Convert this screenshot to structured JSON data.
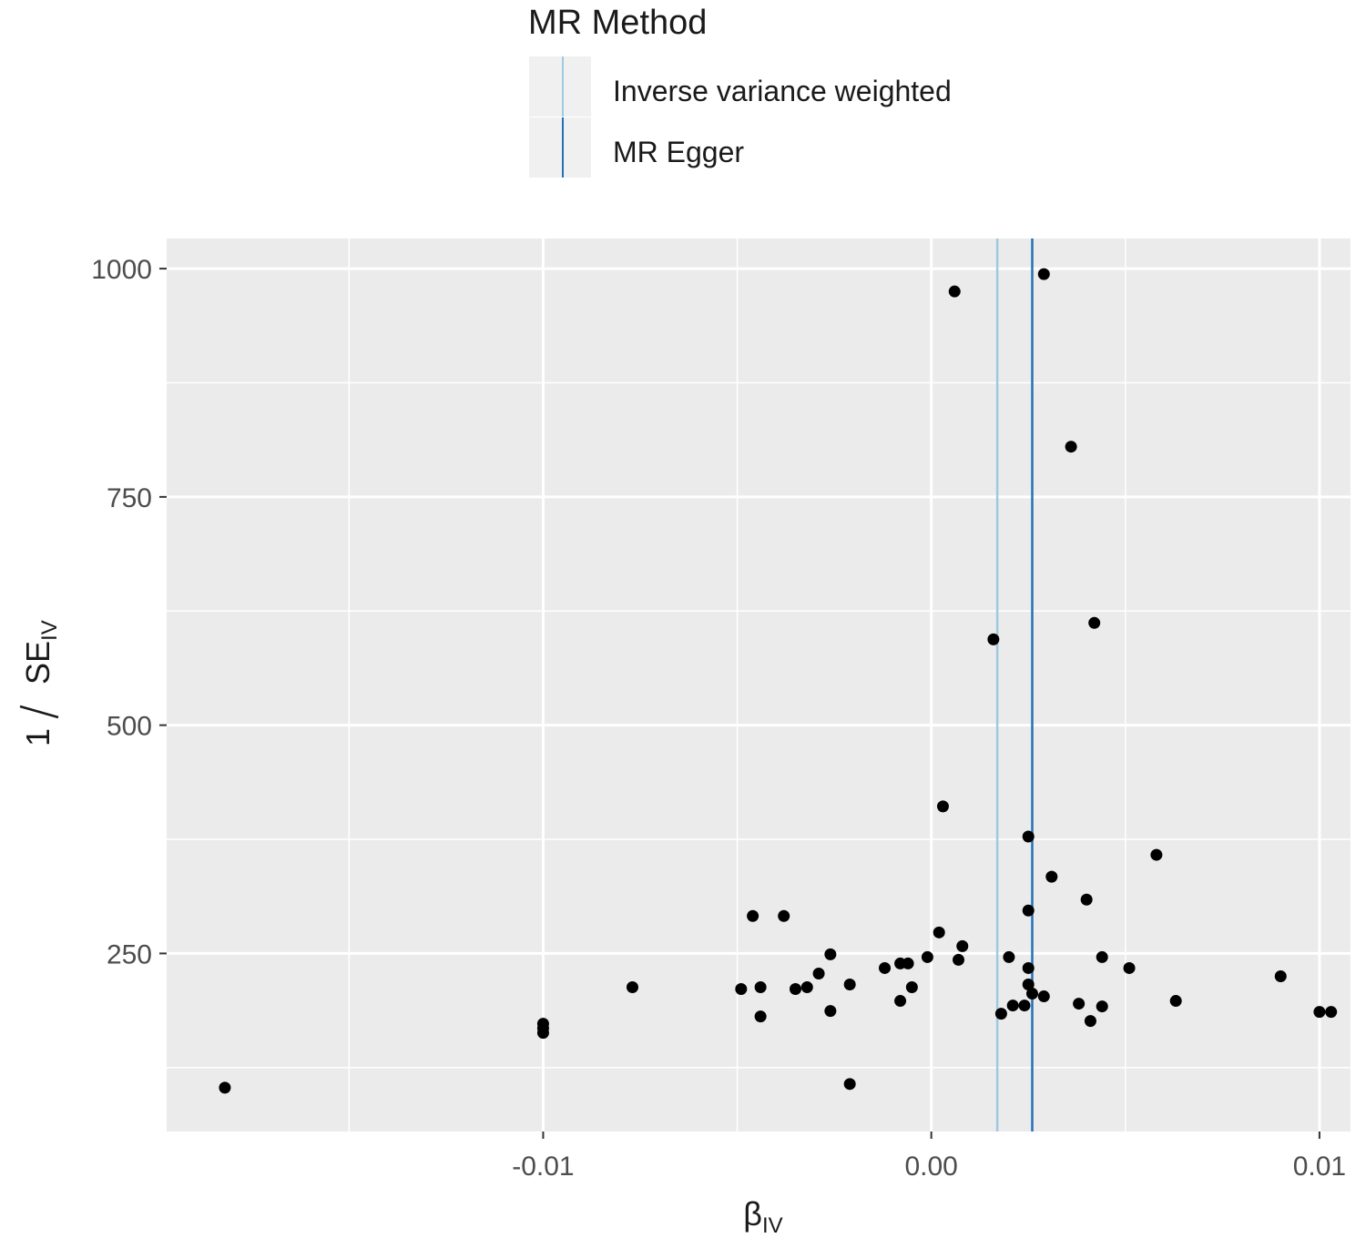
{
  "legend": {
    "title": "MR Method",
    "items": [
      {
        "label": "Inverse variance weighted",
        "color": "#9ecae1"
      },
      {
        "label": "MR Egger",
        "color": "#2171b5"
      }
    ]
  },
  "chart_data": {
    "type": "scatter",
    "xlabel": {
      "main": "β",
      "sub": "IV"
    },
    "ylabel": {
      "numerator": "1",
      "denominator": "SE",
      "sub": "IV"
    },
    "x_ticks": [
      {
        "value": -0.01,
        "label": "-0.01"
      },
      {
        "value": 0.0,
        "label": "0.00"
      },
      {
        "value": 0.01,
        "label": "0.01"
      }
    ],
    "y_ticks": [
      {
        "value": 250,
        "label": "250"
      },
      {
        "value": 500,
        "label": "500"
      },
      {
        "value": 750,
        "label": "750"
      },
      {
        "value": 1000,
        "label": "1000"
      }
    ],
    "xlim": [
      -0.0197,
      0.0108
    ],
    "ylim": [
      55,
      1033
    ],
    "grid": true,
    "background": "#ebebeb",
    "point_color": "#000000",
    "vlines": [
      {
        "method": "Inverse variance weighted",
        "x": 0.0017,
        "color": "#9ecae1"
      },
      {
        "method": "MR Egger",
        "x": 0.0026,
        "color": "#2171b5"
      }
    ],
    "points": [
      {
        "x": -0.0182,
        "y": 103
      },
      {
        "x": -0.01,
        "y": 173
      },
      {
        "x": -0.01,
        "y": 168
      },
      {
        "x": -0.01,
        "y": 163
      },
      {
        "x": -0.0077,
        "y": 213
      },
      {
        "x": -0.0049,
        "y": 211
      },
      {
        "x": -0.0046,
        "y": 291
      },
      {
        "x": -0.0044,
        "y": 213
      },
      {
        "x": -0.0044,
        "y": 181
      },
      {
        "x": -0.0038,
        "y": 291
      },
      {
        "x": -0.0035,
        "y": 211
      },
      {
        "x": -0.0032,
        "y": 213
      },
      {
        "x": -0.0029,
        "y": 228
      },
      {
        "x": -0.0026,
        "y": 249
      },
      {
        "x": -0.0026,
        "y": 187
      },
      {
        "x": -0.0021,
        "y": 216
      },
      {
        "x": -0.0021,
        "y": 107
      },
      {
        "x": -0.0012,
        "y": 234
      },
      {
        "x": -0.0008,
        "y": 239
      },
      {
        "x": -0.0006,
        "y": 239
      },
      {
        "x": -0.0008,
        "y": 198
      },
      {
        "x": -0.0005,
        "y": 213
      },
      {
        "x": -0.0001,
        "y": 246
      },
      {
        "x": 0.0002,
        "y": 273
      },
      {
        "x": 0.0003,
        "y": 411
      },
      {
        "x": 0.0006,
        "y": 975
      },
      {
        "x": 0.0007,
        "y": 243
      },
      {
        "x": 0.0008,
        "y": 258
      },
      {
        "x": 0.0016,
        "y": 594
      },
      {
        "x": 0.0018,
        "y": 184
      },
      {
        "x": 0.002,
        "y": 246
      },
      {
        "x": 0.0021,
        "y": 193
      },
      {
        "x": 0.0024,
        "y": 193
      },
      {
        "x": 0.0025,
        "y": 378
      },
      {
        "x": 0.0025,
        "y": 297
      },
      {
        "x": 0.0025,
        "y": 234
      },
      {
        "x": 0.0025,
        "y": 216
      },
      {
        "x": 0.0026,
        "y": 206
      },
      {
        "x": 0.0029,
        "y": 203
      },
      {
        "x": 0.0029,
        "y": 994
      },
      {
        "x": 0.0031,
        "y": 334
      },
      {
        "x": 0.0036,
        "y": 805
      },
      {
        "x": 0.0038,
        "y": 195
      },
      {
        "x": 0.004,
        "y": 309
      },
      {
        "x": 0.0041,
        "y": 176
      },
      {
        "x": 0.0042,
        "y": 612
      },
      {
        "x": 0.0044,
        "y": 246
      },
      {
        "x": 0.0044,
        "y": 192
      },
      {
        "x": 0.0051,
        "y": 234
      },
      {
        "x": 0.0058,
        "y": 358
      },
      {
        "x": 0.0063,
        "y": 198
      },
      {
        "x": 0.009,
        "y": 225
      },
      {
        "x": 0.01,
        "y": 186
      },
      {
        "x": 0.0103,
        "y": 186
      }
    ]
  }
}
